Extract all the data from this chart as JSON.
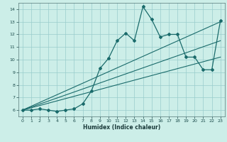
{
  "xlabel": "Humidex (Indice chaleur)",
  "x_values": [
    0,
    1,
    2,
    3,
    4,
    5,
    6,
    7,
    8,
    9,
    10,
    11,
    12,
    13,
    14,
    15,
    16,
    17,
    18,
    19,
    20,
    21,
    22,
    23
  ],
  "y_main": [
    6.0,
    6.0,
    6.1,
    6.0,
    5.9,
    6.0,
    6.1,
    6.5,
    7.5,
    9.3,
    10.1,
    11.5,
    12.1,
    11.5,
    14.2,
    13.2,
    11.8,
    12.0,
    12.0,
    10.2,
    10.2,
    9.2,
    9.2,
    13.1
  ],
  "trend_lines": [
    [
      6.0,
      13.0
    ],
    [
      6.0,
      11.5
    ],
    [
      6.0,
      10.2
    ]
  ],
  "line_color": "#1a6b6b",
  "bg_color": "#cceee8",
  "grid_color": "#99cccc",
  "ylim": [
    5.5,
    14.5
  ],
  "xlim": [
    -0.5,
    23.5
  ],
  "yticks": [
    6,
    7,
    8,
    9,
    10,
    11,
    12,
    13,
    14
  ],
  "xticks": [
    0,
    1,
    2,
    3,
    4,
    5,
    6,
    7,
    8,
    9,
    10,
    11,
    12,
    13,
    14,
    15,
    16,
    17,
    18,
    19,
    20,
    21,
    22,
    23
  ]
}
